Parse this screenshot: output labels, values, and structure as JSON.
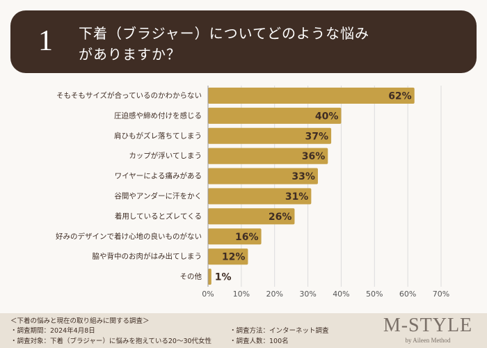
{
  "number": "1",
  "chart_data": {
    "type": "bar",
    "orientation": "horizontal",
    "title": "下着（ブラジャー）についてどのような悩みがありますか？",
    "categories": [
      "そもそもサイズが合っているのかわからない",
      "圧迫感や締め付けを感じる",
      "肩ひもがズレ落ちてしまう",
      "カップが浮いてしまう",
      "ワイヤーによる痛みがある",
      "谷間やアンダーに汗をかく",
      "着用しているとズレてくる",
      "好みのデザインで着け心地の良いものがない",
      "脇や背中のお肉がはみ出てしまう",
      "その他"
    ],
    "values": [
      62,
      40,
      37,
      36,
      33,
      31,
      26,
      16,
      12,
      1
    ],
    "value_labels": [
      "62%",
      "40%",
      "37%",
      "36%",
      "33%",
      "31%",
      "26%",
      "16%",
      "12%",
      "1%"
    ],
    "color": "#c6a046",
    "xlim": [
      0,
      70
    ],
    "xticks": [
      {
        "value": 0,
        "label": "0%"
      },
      {
        "value": 10,
        "label": "10%"
      },
      {
        "value": 20,
        "label": "20%"
      },
      {
        "value": 30,
        "label": "30%"
      },
      {
        "value": 40,
        "label": "40%"
      },
      {
        "value": 50,
        "label": "50%"
      },
      {
        "value": 60,
        "label": "60%"
      },
      {
        "value": 70,
        "label": "70%"
      }
    ],
    "grid": true
  },
  "footer": {
    "heading": "＜下着の悩みと現在の取り組みに関する調査＞",
    "items": [
      "・調査期間：2024年4月8日",
      "・調査対象：下着（ブラジャー）に悩みを抱えている20〜30代女性",
      "・調査方法：インターネット調査",
      "・調査人数：100名"
    ],
    "logo": "M-STYLE",
    "logo_sub": "by Aileen Method"
  }
}
